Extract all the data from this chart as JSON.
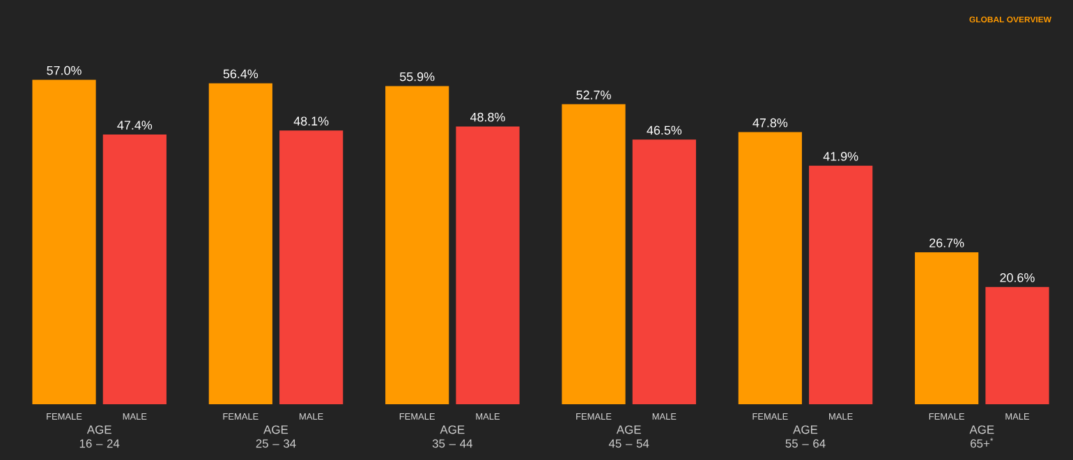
{
  "chart_data": {
    "type": "bar",
    "categories": [
      "AGE 16 – 24",
      "AGE 25 – 34",
      "AGE 35 – 44",
      "AGE 45 – 54",
      "AGE 55 – 64",
      "AGE 65+$^{*}$"
    ],
    "series": [
      {
        "name": "FEMALE",
        "color": "#ff9a00",
        "values": [
          57.0,
          56.4,
          55.9,
          52.7,
          47.8,
          26.7
        ],
        "value_labels": [
          "57.0%",
          "56.4%",
          "55.9%",
          "52.7%",
          "47.8%",
          "26.7%"
        ]
      },
      {
        "name": "MALE",
        "color": "#f5423a",
        "values": [
          47.4,
          48.1,
          48.8,
          46.5,
          41.9,
          20.6
        ],
        "value_labels": [
          "47.4%",
          "48.1%",
          "48.8%",
          "46.5%",
          "41.9%",
          "20.6%"
        ]
      }
    ],
    "annotations": [
      "GLOBAL OVERVIEW"
    ],
    "legend": false
  }
}
